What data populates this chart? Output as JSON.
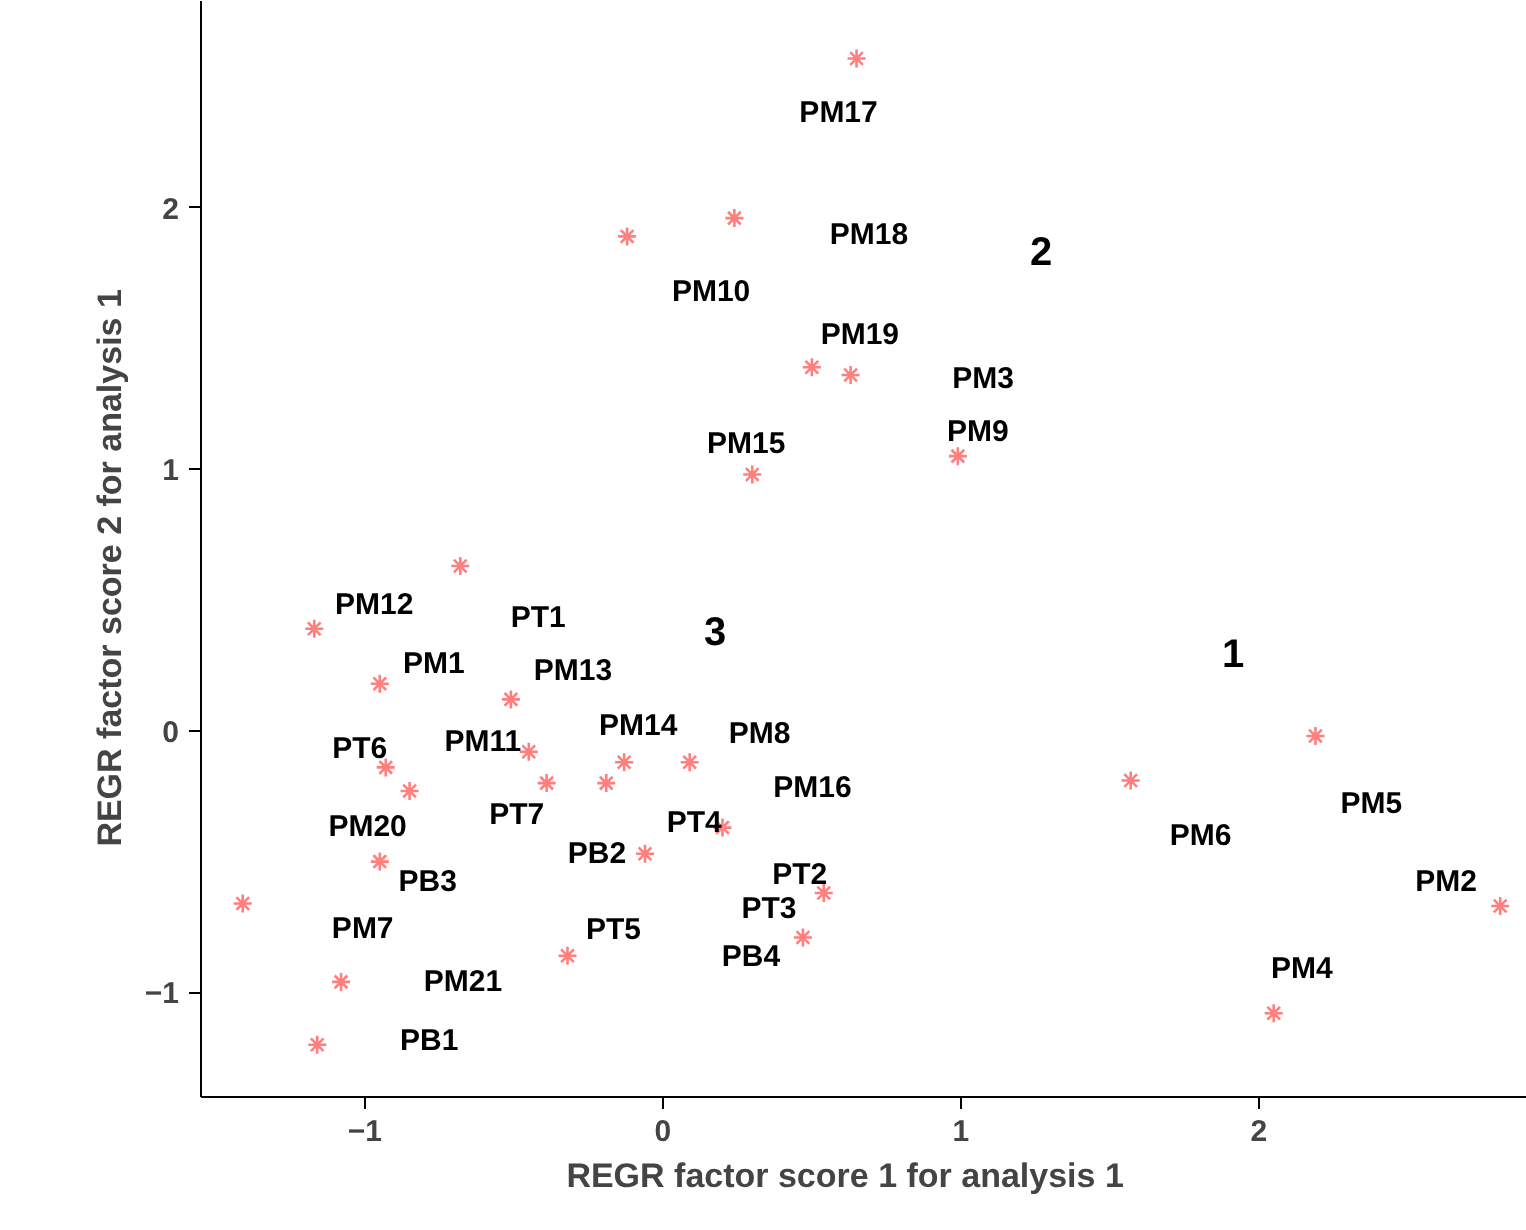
{
  "chart_data": {
    "type": "scatter",
    "xlabel": "REGR factor score   1 for analysis   1",
    "ylabel": "REGR factor score   2 for analysis   1",
    "xlim": [
      -1.55,
      2.9
    ],
    "ylim": [
      -1.4,
      2.79
    ],
    "xticks": [
      -1,
      0,
      1,
      2
    ],
    "yticks": [
      -1,
      0,
      1,
      2
    ],
    "grid": false,
    "marker": "cross",
    "series": [
      {
        "color": "#ff7f7f",
        "x": [
          0.65,
          -0.12,
          0.24,
          0.5,
          0.63,
          0.99,
          0.3,
          -0.68,
          -1.17,
          -0.95,
          -0.51,
          -0.45,
          -0.93,
          -0.85,
          -0.39,
          -0.13,
          -0.19,
          0.09,
          0.2,
          -0.06,
          -0.95,
          -1.41,
          0.54,
          0.47,
          -0.32,
          -1.08,
          -1.16,
          1.57,
          2.19,
          2.81,
          2.05
        ],
        "values": [
          2.57,
          1.89,
          1.96,
          1.39,
          1.36,
          1.05,
          0.98,
          0.63,
          0.39,
          0.18,
          0.12,
          -0.08,
          -0.14,
          -0.23,
          -0.2,
          -0.12,
          -0.2,
          -0.12,
          -0.37,
          -0.47,
          -0.5,
          -0.66,
          -0.62,
          -0.79,
          -0.86,
          -0.96,
          -1.2,
          -0.19,
          -0.02,
          -0.67,
          -1.08
        ]
      }
    ],
    "annotations": [
      {
        "text": "PM17",
        "x": 0.65,
        "y": 2.57
      },
      {
        "text": "PM10",
        "x": -0.12,
        "y": 1.89
      },
      {
        "text": "PM19",
        "x": 0.5,
        "y": 1.39
      },
      {
        "text": "PM9",
        "x": 0.99,
        "y": 1.05
      },
      {
        "text": "PM15",
        "x": 0.3,
        "y": 0.98
      },
      {
        "text": "PT1",
        "x": -0.68,
        "y": 0.63
      },
      {
        "text": "PM12",
        "x": -1.17,
        "y": 0.39
      },
      {
        "text": "PM1",
        "x": -0.95,
        "y": 0.18
      },
      {
        "text": "PM13",
        "x": -0.51,
        "y": 0.12
      },
      {
        "text": "PM11",
        "x": -0.45,
        "y": -0.08
      },
      {
        "text": "PT6",
        "x": -0.93,
        "y": -0.14
      },
      {
        "text": "PM20",
        "x": -0.85,
        "y": -0.23
      },
      {
        "text": "PT7",
        "x": -0.39,
        "y": -0.2
      },
      {
        "text": "PM14",
        "x": -0.13,
        "y": -0.12
      },
      {
        "text": "PT4",
        "x": -0.19,
        "y": -0.2
      },
      {
        "text": "PM8",
        "x": 0.09,
        "y": -0.12
      },
      {
        "text": "PM16",
        "x": 0.2,
        "y": -0.37
      },
      {
        "text": "PB2",
        "x": -0.06,
        "y": -0.47
      },
      {
        "text": "PB3",
        "x": -0.95,
        "y": -0.5
      },
      {
        "text": "PM7",
        "x": -1.41,
        "y": -0.66
      },
      {
        "text": "PT2",
        "x": 0.54,
        "y": -0.62
      },
      {
        "text": "PT3",
        "x": 0.47,
        "y": -0.79
      },
      {
        "text": "PB4",
        "x": 0.47,
        "y": -0.79
      },
      {
        "text": "PT5",
        "x": -0.32,
        "y": -0.86
      },
      {
        "text": "PM21",
        "x": -1.08,
        "y": -0.96
      },
      {
        "text": "PB1",
        "x": -1.16,
        "y": -1.2
      },
      {
        "text": "PM6",
        "x": 1.57,
        "y": -0.19
      },
      {
        "text": "PM5",
        "x": 2.19,
        "y": -0.02
      },
      {
        "text": "PM2",
        "x": 2.81,
        "y": -0.67
      },
      {
        "text": "PM4",
        "x": 2.05,
        "y": -1.08
      },
      "PM18",
      "PM3",
      "2",
      "3",
      "1"
    ]
  }
}
